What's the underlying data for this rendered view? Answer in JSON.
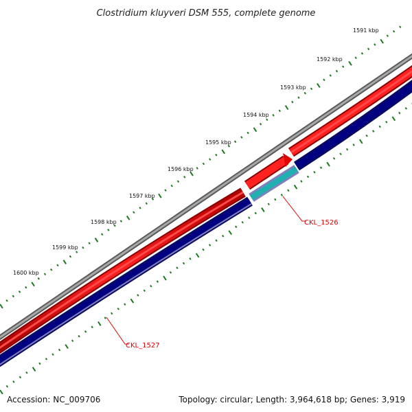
{
  "title": "Clostridium kluyveri DSM 555, complete genome",
  "footer": {
    "accession": "Accession: NC_009706",
    "summary": "Topology: circular; Length: 3,964,618 bp; Genes: 3,919"
  },
  "ruler_labels": [
    "1591 kbp",
    "1592 kbp",
    "1593 kbp",
    "1594 kbp",
    "1595 kbp",
    "1596 kbp",
    "1597 kbp",
    "1598 kbp",
    "1599 kbp",
    "1600 kbp"
  ],
  "genes": [
    {
      "label": "CKL_1526"
    },
    {
      "label": "CKL_1527"
    }
  ],
  "colors": {
    "backbone": "#808080",
    "forward_strand": "#ff0000",
    "reverse_strand": "#000080",
    "ticks": "#1a7a1a",
    "feature_highlight": "#20b0b0",
    "feature_outline": "#8080c0",
    "label": "#e00000"
  }
}
